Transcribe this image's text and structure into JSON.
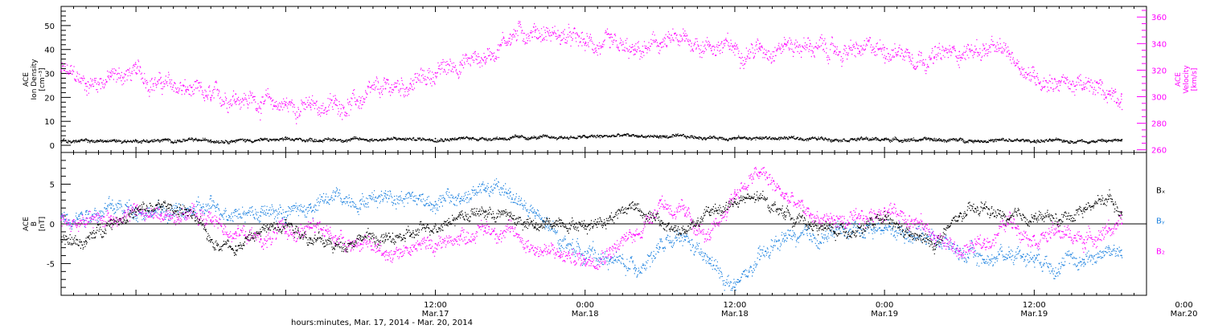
{
  "chart_data": [
    {
      "type": "scatter",
      "panel": "top",
      "ylabel_lines": [
        "ACE",
        "Ion Density",
        "[cm⁻³]"
      ],
      "y2label_lines": [
        "ACE",
        "Velocity",
        "[km/s]"
      ],
      "ylim": [
        -3,
        58
      ],
      "y2lim": [
        258,
        368
      ],
      "yticks": [
        0,
        10,
        20,
        30,
        40,
        50
      ],
      "y2ticks": [
        260,
        280,
        300,
        320,
        340,
        360
      ],
      "xlim": [
        -18,
        69
      ],
      "colors": {
        "density": "#000000",
        "velocity": "#ff00ff"
      },
      "series": [
        {
          "axis": "left",
          "color": "#000000",
          "x": [
            -18,
            -12,
            -6,
            0,
            6,
            12,
            18,
            24,
            27,
            30,
            36,
            42,
            48,
            54,
            60,
            66,
            67
          ],
          "values": [
            1.8,
            2.0,
            2.2,
            2.4,
            2.6,
            2.8,
            3.2,
            3.6,
            4.2,
            3.8,
            3.2,
            3.0,
            2.6,
            2.3,
            2.0,
            2.0,
            2.2
          ]
        },
        {
          "axis": "right",
          "color": "#ff00ff",
          "x": [
            -18,
            -16,
            -14,
            -12,
            -10,
            -8,
            -6,
            -4,
            -2,
            0,
            2,
            4,
            6,
            8,
            10,
            12,
            14,
            16,
            18,
            20,
            22,
            24,
            26,
            28,
            30,
            32,
            34,
            36,
            38,
            40,
            42,
            44,
            46,
            48,
            50,
            52,
            54,
            56,
            58,
            60,
            62,
            64,
            66,
            67
          ],
          "values": [
            320,
            310,
            315,
            318,
            310,
            305,
            298,
            302,
            296,
            294,
            292,
            294,
            297,
            306,
            310,
            318,
            326,
            330,
            347,
            350,
            346,
            340,
            337,
            332,
            340,
            342,
            339,
            336,
            336,
            340,
            338,
            334,
            334,
            337,
            333,
            330,
            334,
            336,
            332,
            315,
            312,
            307,
            304,
            302
          ]
        }
      ]
    },
    {
      "type": "scatter",
      "panel": "bottom",
      "ylabel_lines": [
        "ACE",
        "B",
        "[nT]"
      ],
      "ylim": [
        -9,
        9
      ],
      "yticks": [
        -5,
        0,
        5
      ],
      "xlim": [
        -18,
        69
      ],
      "legend": [
        "Bₓ",
        "Bᵧ",
        "B₂"
      ],
      "legend_placement": "right",
      "colors": {
        "bx": "#000000",
        "by": "#1f83e0",
        "bz": "#ff00ff"
      },
      "series": [
        {
          "name": "Bx",
          "color": "#000000",
          "x": [
            -18,
            -16,
            -14,
            -12,
            -10,
            -8,
            -6,
            -4,
            -2,
            0,
            2,
            4,
            6,
            8,
            10,
            12,
            14,
            16,
            18,
            20,
            22,
            24,
            26,
            28,
            30,
            32,
            34,
            36,
            38,
            40,
            42,
            44,
            46,
            48,
            50,
            52,
            54,
            56,
            58,
            60,
            62,
            64,
            66,
            67
          ],
          "values": [
            -2.0,
            -2.2,
            0.5,
            1.5,
            2.2,
            1.8,
            -2.0,
            -2.8,
            -1.0,
            0.5,
            -1.8,
            -2.8,
            -1.5,
            -2.0,
            -1.5,
            0.0,
            1.2,
            1.5,
            1.0,
            -0.5,
            0.5,
            -0.2,
            1.0,
            2.5,
            0.0,
            -1.0,
            1.5,
            2.8,
            3.2,
            1.5,
            0.0,
            -1.0,
            -0.5,
            0.5,
            -1.5,
            -2.5,
            1.0,
            2.0,
            0.5,
            1.0,
            0.5,
            2.0,
            3.5,
            1.5
          ]
        },
        {
          "name": "By",
          "color": "#1f83e0",
          "x": [
            -18,
            -16,
            -14,
            -12,
            -10,
            -8,
            -6,
            -4,
            -2,
            0,
            2,
            4,
            6,
            8,
            10,
            12,
            14,
            16,
            18,
            20,
            22,
            24,
            26,
            28,
            30,
            32,
            34,
            36,
            38,
            40,
            42,
            44,
            46,
            48,
            50,
            52,
            54,
            56,
            58,
            60,
            62,
            64,
            66,
            67
          ],
          "values": [
            1.0,
            1.5,
            2.0,
            2.0,
            1.5,
            1.5,
            2.0,
            1.8,
            1.5,
            1.5,
            2.0,
            3.5,
            3.0,
            3.8,
            3.5,
            2.8,
            3.2,
            4.5,
            4.0,
            1.0,
            -2.0,
            -3.5,
            -4.5,
            -5.5,
            -3.0,
            -2.0,
            -5.0,
            -8.0,
            -4.5,
            -1.5,
            -2.0,
            -1.0,
            -0.5,
            -0.5,
            -1.0,
            -1.5,
            -3.5,
            -4.5,
            -3.5,
            -4.0,
            -5.0,
            -4.5,
            -3.0,
            -4.0
          ]
        },
        {
          "name": "Bz",
          "color": "#ff00ff",
          "x": [
            -18,
            -16,
            -14,
            -12,
            -10,
            -8,
            -6,
            -4,
            -2,
            0,
            2,
            4,
            6,
            8,
            10,
            12,
            14,
            16,
            18,
            20,
            22,
            24,
            26,
            28,
            30,
            32,
            34,
            36,
            38,
            40,
            42,
            44,
            46,
            48,
            50,
            52,
            54,
            56,
            58,
            60,
            62,
            64,
            66,
            67
          ],
          "values": [
            0.5,
            0.0,
            1.0,
            1.5,
            1.0,
            1.5,
            0.5,
            -1.0,
            -2.0,
            -1.0,
            -0.5,
            -1.5,
            -2.5,
            -3.5,
            -3.0,
            -2.5,
            -1.5,
            -0.5,
            -1.0,
            -3.0,
            -4.0,
            -4.5,
            -3.0,
            -1.5,
            3.0,
            1.0,
            -2.0,
            4.0,
            6.5,
            3.5,
            1.0,
            0.5,
            0.0,
            2.0,
            1.0,
            -1.5,
            -3.5,
            -2.5,
            0.5,
            -1.5,
            -1.0,
            -2.0,
            -0.5,
            0.0
          ]
        }
      ]
    }
  ],
  "x_axis": {
    "major_ticks": [
      {
        "hour": 12,
        "time": "12:00",
        "date": "Mar.17"
      },
      {
        "hour": 24,
        "time": "0:00",
        "date": "Mar.18"
      },
      {
        "hour": 36,
        "time": "12:00",
        "date": "Mar.18"
      },
      {
        "hour": 48,
        "time": "0:00",
        "date": "Mar.19"
      },
      {
        "hour": 60,
        "time": "12:00",
        "date": "Mar.19"
      },
      {
        "hour": 72,
        "time": "0:00",
        "date": "Mar.20"
      }
    ],
    "xlabel": "hours:minutes, Mar. 17, 2014 - Mar. 20, 2014"
  }
}
